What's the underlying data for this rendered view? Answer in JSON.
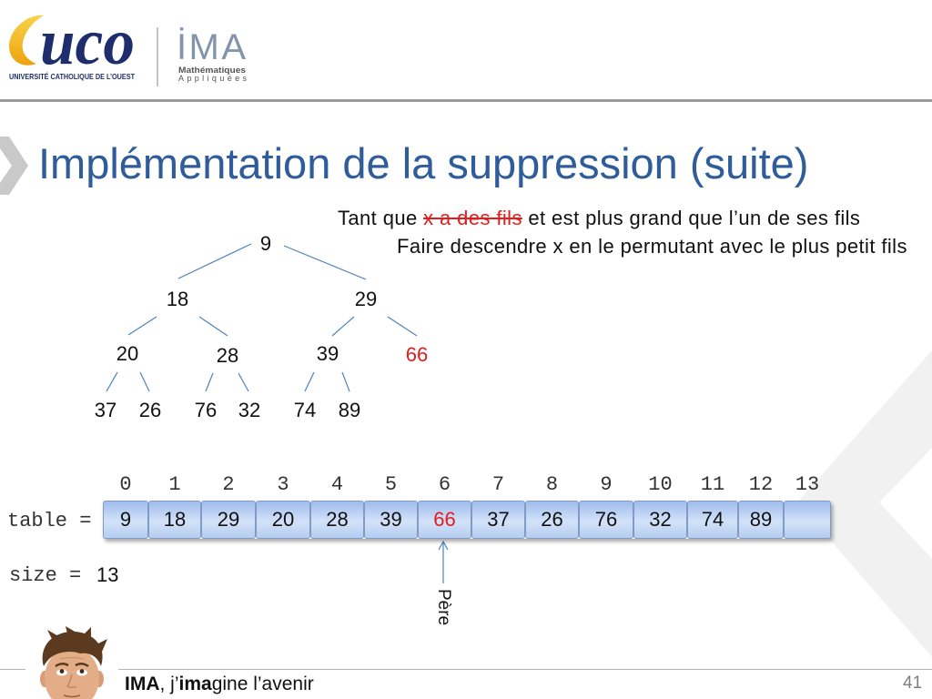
{
  "header": {
    "uco_logo": {
      "wordmark": "uco",
      "institution": "UNIVERSITÉ CATHOLIQUE DE L’OUEST"
    },
    "ima_logo": {
      "wordmark": "İMA",
      "subtitle_line1": "Mathématiques",
      "subtitle_line2": "Appliquées"
    }
  },
  "slide": {
    "title": "Implémentation de la suppression (suite)",
    "algorithm": {
      "line1": {
        "before": "Tant que ",
        "struck": "x a des fils",
        "after": " et est plus grand que l’un de ses fils"
      },
      "line2": "Faire descendre x en le permutant avec le plus petit fils"
    },
    "tree": {
      "nodes": [
        {
          "value": "9"
        },
        {
          "value": "18"
        },
        {
          "value": "29"
        },
        {
          "value": "20"
        },
        {
          "value": "28"
        },
        {
          "value": "39"
        },
        {
          "value": "66",
          "highlight": true
        },
        {
          "value": "37"
        },
        {
          "value": "26"
        },
        {
          "value": "76"
        },
        {
          "value": "32"
        },
        {
          "value": "74"
        },
        {
          "value": "89"
        }
      ]
    },
    "array": {
      "label": "table =",
      "indices": [
        "0",
        "1",
        "2",
        "3",
        "4",
        "5",
        "6",
        "7",
        "8",
        "9",
        "10",
        "11",
        "12",
        "13"
      ],
      "cells": [
        {
          "value": "9"
        },
        {
          "value": "18"
        },
        {
          "value": "29"
        },
        {
          "value": "20"
        },
        {
          "value": "28"
        },
        {
          "value": "39"
        },
        {
          "value": "66",
          "highlight": true
        },
        {
          "value": "37"
        },
        {
          "value": "26"
        },
        {
          "value": "76"
        },
        {
          "value": "32"
        },
        {
          "value": "74"
        },
        {
          "value": "89"
        },
        {
          "value": ""
        }
      ]
    },
    "size": {
      "label": "size =",
      "value": "13"
    },
    "pointer": {
      "label": "Père",
      "target_index": 6
    }
  },
  "footer": {
    "tagline": {
      "brand": "IMA",
      "joiner": ", j’",
      "brand_inline": "ima",
      "rest": "gine l’avenir"
    },
    "page_number": "41"
  },
  "icons": [
    "uco-logo",
    "ima-logo",
    "title-chevron-icon",
    "background-chevron-decoration",
    "up-arrow-icon",
    "presenter-photo"
  ],
  "colors": {
    "title": "#2f5c9b",
    "highlight": "#e31c1c",
    "tree_edge": "#4f81bd",
    "array_cell": "#b3cbef",
    "logo_navy": "#1e2d6b",
    "logo_yellow": "#f2b51b",
    "rule": "#9b9b9b"
  }
}
